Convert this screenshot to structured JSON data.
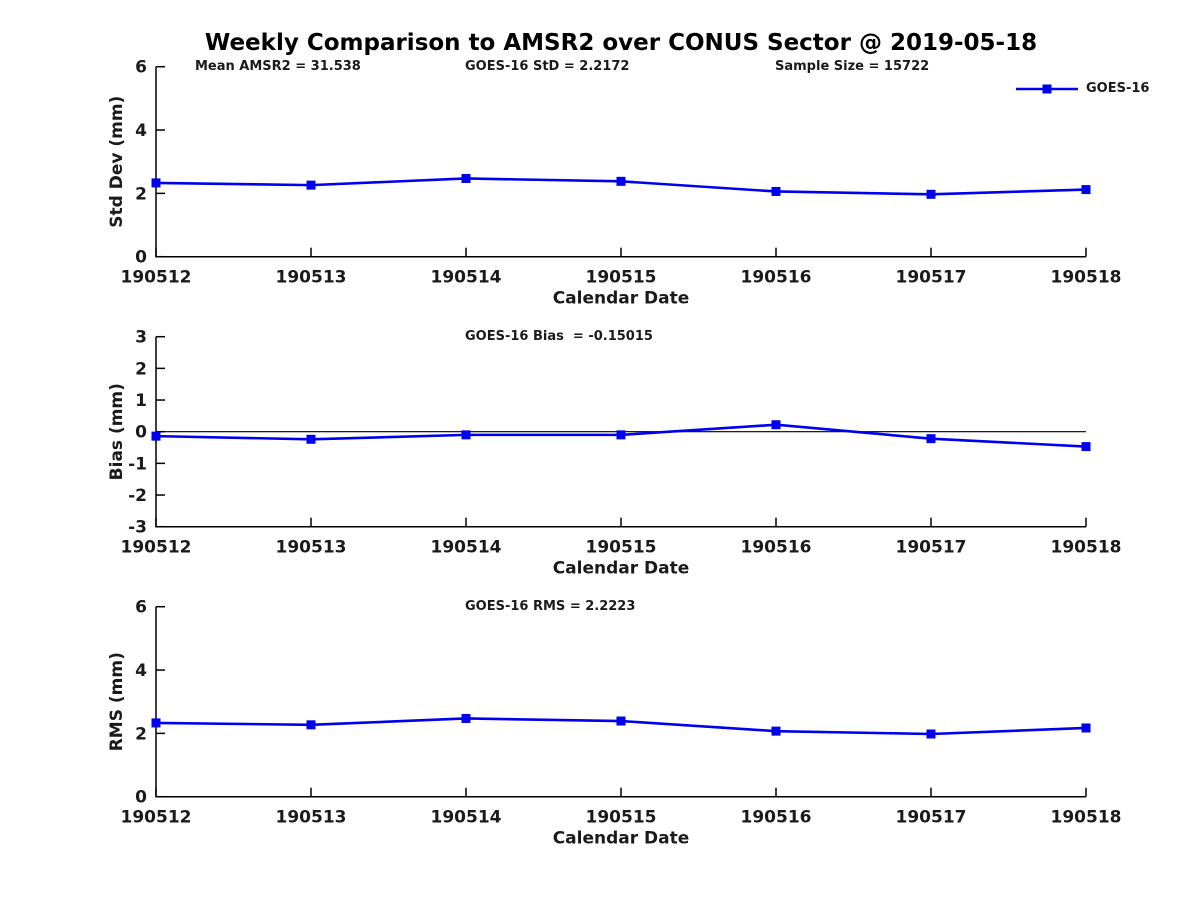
{
  "title": "Weekly Comparison to AMSR2 over CONUS Sector @ 2019-05-18",
  "series_color": "#0000ee",
  "axis_color": "#000000",
  "text_color": "#1a1a1a",
  "chart_data": [
    {
      "id": "std-dev",
      "type": "line",
      "categories": [
        "190512",
        "190513",
        "190514",
        "190515",
        "190516",
        "190517",
        "190518"
      ],
      "series": [
        {
          "name": "GOES-16",
          "color": "#0000ee",
          "marker": "square",
          "values": [
            2.33,
            2.26,
            2.47,
            2.38,
            2.06,
            1.97,
            2.12
          ]
        }
      ],
      "annotations": [
        "Mean AMSR2 = 31.538",
        "GOES-16 StD = 2.2172",
        "Sample Size = 15722"
      ],
      "xlabel": "Calendar Date",
      "ylabel": "Std Dev (mm)",
      "ylim": [
        0,
        6
      ],
      "yticks": [
        0,
        2,
        4,
        6
      ],
      "grid": false,
      "zero_line": false,
      "legend_position": "top-right"
    },
    {
      "id": "bias",
      "type": "line",
      "categories": [
        "190512",
        "190513",
        "190514",
        "190515",
        "190516",
        "190517",
        "190518"
      ],
      "series": [
        {
          "name": "GOES-16",
          "color": "#0000ee",
          "marker": "square",
          "values": [
            -0.14,
            -0.24,
            -0.1,
            -0.1,
            0.22,
            -0.22,
            -0.47
          ]
        }
      ],
      "annotations": [
        "GOES-16 Bias  = -0.15015"
      ],
      "xlabel": "Calendar Date",
      "ylabel": "Bias (mm)",
      "ylim": [
        -3,
        3
      ],
      "yticks": [
        -3,
        -2,
        -1,
        0,
        1,
        2,
        3
      ],
      "grid": false,
      "zero_line": true,
      "legend_position": "none"
    },
    {
      "id": "rms",
      "type": "line",
      "categories": [
        "190512",
        "190513",
        "190514",
        "190515",
        "190516",
        "190517",
        "190518"
      ],
      "series": [
        {
          "name": "GOES-16",
          "color": "#0000ee",
          "marker": "square",
          "values": [
            2.33,
            2.27,
            2.47,
            2.39,
            2.07,
            1.98,
            2.17
          ]
        }
      ],
      "annotations": [
        "GOES-16 RMS = 2.2223"
      ],
      "xlabel": "Calendar Date",
      "ylabel": "RMS (mm)",
      "ylim": [
        0,
        6
      ],
      "yticks": [
        0,
        2,
        4,
        6
      ],
      "grid": false,
      "zero_line": false,
      "legend_position": "none"
    }
  ]
}
